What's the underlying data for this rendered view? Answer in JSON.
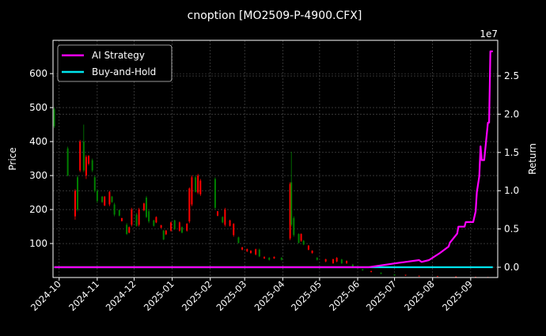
{
  "chart_data": {
    "type": "candlestick+line",
    "title": "cnoption [MO2509-P-4900.CFX]",
    "ylabel_left": "Price",
    "ylabel_right": "Return",
    "right_axis_multiplier": "1e7",
    "ylim_left": [
      0,
      698
    ],
    "ylim_right": [
      -1340000,
      29650000
    ],
    "xlim": [
      "2024-09-26",
      "2025-09-23"
    ],
    "grid": true,
    "legend_position": "top-left",
    "x_ticks": [
      "2024-10",
      "2024-11",
      "2024-12",
      "2025-01",
      "2025-02",
      "2025-03",
      "2025-04",
      "2025-05",
      "2025-06",
      "2025-07",
      "2025-08",
      "2025-09"
    ],
    "y_ticks_left": [
      100,
      200,
      300,
      400,
      500,
      600
    ],
    "y_ticks_right": [
      {
        "value": 0,
        "label": "0.0"
      },
      {
        "value": 5000000,
        "label": "0.5"
      },
      {
        "value": 10000000,
        "label": "1.0"
      },
      {
        "value": 15000000,
        "label": "1.5"
      },
      {
        "value": 20000000,
        "label": "2.0"
      },
      {
        "value": 25000000,
        "label": "2.5"
      }
    ],
    "colors": {
      "up": "#008000",
      "down": "#ff0000",
      "strategy": "#ff00ff",
      "buyhold": "#00e5ee",
      "grid": "#555555"
    },
    "candles_columns": [
      "date",
      "open",
      "high",
      "low",
      "close"
    ],
    "candles": [
      [
        "2024-09-27",
        445,
        500,
        440,
        495
      ],
      [
        "2024-10-08",
        300,
        385,
        298,
        380
      ],
      [
        "2024-10-14",
        255,
        260,
        170,
        180
      ],
      [
        "2024-10-16",
        200,
        300,
        195,
        295
      ],
      [
        "2024-10-18",
        400,
        405,
        310,
        315
      ],
      [
        "2024-10-21",
        315,
        450,
        310,
        400
      ],
      [
        "2024-10-23",
        355,
        360,
        290,
        300
      ],
      [
        "2024-10-25",
        358,
        360,
        330,
        335
      ],
      [
        "2024-10-28",
        315,
        350,
        310,
        345
      ],
      [
        "2024-10-30",
        255,
        300,
        250,
        295
      ],
      [
        "2024-11-01",
        225,
        260,
        220,
        255
      ],
      [
        "2024-11-05",
        222,
        240,
        220,
        238
      ],
      [
        "2024-11-07",
        238,
        240,
        210,
        212
      ],
      [
        "2024-11-11",
        252,
        255,
        210,
        215
      ],
      [
        "2024-11-13",
        222,
        240,
        220,
        238
      ],
      [
        "2024-11-15",
        185,
        220,
        180,
        215
      ],
      [
        "2024-11-19",
        182,
        200,
        180,
        198
      ],
      [
        "2024-11-21",
        175,
        175,
        165,
        166
      ],
      [
        "2024-11-25",
        128,
        160,
        125,
        155
      ],
      [
        "2024-11-27",
        148,
        150,
        130,
        132
      ],
      [
        "2024-11-29",
        200,
        205,
        150,
        155
      ],
      [
        "2024-12-03",
        152,
        190,
        150,
        185
      ],
      [
        "2024-12-05",
        200,
        205,
        150,
        155
      ],
      [
        "2024-12-09",
        218,
        220,
        195,
        198
      ],
      [
        "2024-12-11",
        178,
        240,
        175,
        235
      ],
      [
        "2024-12-13",
        165,
        200,
        160,
        195
      ],
      [
        "2024-12-17",
        152,
        170,
        150,
        168
      ],
      [
        "2024-12-19",
        178,
        180,
        160,
        162
      ],
      [
        "2024-12-23",
        154,
        155,
        145,
        146
      ],
      [
        "2024-12-25",
        112,
        140,
        110,
        138
      ],
      [
        "2024-12-27",
        138,
        140,
        125,
        127
      ],
      [
        "2024-12-31",
        162,
        165,
        135,
        138
      ],
      [
        "2025-01-03",
        142,
        170,
        140,
        168
      ],
      [
        "2025-01-07",
        162,
        165,
        135,
        138
      ],
      [
        "2025-01-09",
        132,
        150,
        130,
        148
      ],
      [
        "2025-01-13",
        158,
        160,
        135,
        138
      ],
      [
        "2025-01-15",
        262,
        265,
        160,
        165
      ],
      [
        "2025-01-17",
        295,
        300,
        210,
        215
      ],
      [
        "2025-01-20",
        252,
        300,
        250,
        295
      ],
      [
        "2025-01-22",
        300,
        305,
        245,
        250
      ],
      [
        "2025-01-24",
        285,
        290,
        240,
        245
      ],
      [
        "2025-02-05",
        205,
        295,
        200,
        290
      ],
      [
        "2025-02-07",
        195,
        195,
        180,
        182
      ],
      [
        "2025-02-11",
        162,
        180,
        160,
        178
      ],
      [
        "2025-02-13",
        200,
        205,
        150,
        155
      ],
      [
        "2025-02-17",
        168,
        170,
        150,
        152
      ],
      [
        "2025-02-20",
        158,
        160,
        120,
        125
      ],
      [
        "2025-02-24",
        102,
        120,
        100,
        118
      ],
      [
        "2025-02-27",
        89,
        90,
        80,
        82
      ],
      [
        "2025-03-03",
        84,
        85,
        75,
        77
      ],
      [
        "2025-03-06",
        79,
        80,
        70,
        72
      ],
      [
        "2025-03-10",
        83,
        85,
        65,
        68
      ],
      [
        "2025-03-13",
        62,
        85,
        60,
        82
      ],
      [
        "2025-03-17",
        61,
        62,
        55,
        56
      ],
      [
        "2025-03-21",
        52,
        60,
        50,
        58
      ],
      [
        "2025-03-25",
        61,
        62,
        55,
        56
      ],
      [
        "2025-03-31",
        52,
        60,
        50,
        58
      ],
      [
        "2025-04-07",
        275,
        280,
        110,
        115
      ],
      [
        "2025-04-08",
        155,
        370,
        150,
        280
      ],
      [
        "2025-04-10",
        125,
        180,
        120,
        175
      ],
      [
        "2025-04-14",
        102,
        130,
        100,
        128
      ],
      [
        "2025-04-16",
        128,
        130,
        105,
        108
      ],
      [
        "2025-04-18",
        97,
        110,
        95,
        108
      ],
      [
        "2025-04-22",
        94,
        95,
        80,
        82
      ],
      [
        "2025-04-25",
        79,
        80,
        70,
        72
      ],
      [
        "2025-04-29",
        52,
        60,
        50,
        58
      ],
      [
        "2025-05-06",
        54,
        55,
        45,
        47
      ],
      [
        "2025-05-12",
        54,
        55,
        40,
        42
      ],
      [
        "2025-05-15",
        58,
        60,
        45,
        47
      ],
      [
        "2025-05-19",
        42,
        55,
        40,
        53
      ],
      [
        "2025-05-23",
        49,
        50,
        40,
        42
      ],
      [
        "2025-05-28",
        32,
        40,
        30,
        38
      ],
      [
        "2025-06-05",
        21,
        25,
        20,
        24
      ],
      [
        "2025-06-12",
        19,
        20,
        15,
        16
      ],
      [
        "2025-06-20",
        11,
        15,
        10,
        14
      ],
      [
        "2025-07-01",
        6,
        10,
        5,
        9
      ],
      [
        "2025-07-10",
        8,
        8,
        5,
        6
      ],
      [
        "2025-07-21",
        5,
        6,
        4,
        4.5
      ],
      [
        "2025-08-05",
        4,
        4,
        2,
        2.5
      ],
      [
        "2025-08-20",
        3,
        3.5,
        2,
        2.2
      ],
      [
        "2025-09-05",
        2,
        2.2,
        1,
        1.2
      ],
      [
        "2025-09-15",
        1.5,
        1.8,
        1,
        1.1
      ]
    ],
    "series": [
      {
        "name": "AI Strategy",
        "x": [
          "2024-09-27",
          "2025-06-10",
          "2025-07-01",
          "2025-07-21",
          "2025-07-23",
          "2025-07-29",
          "2025-08-07",
          "2025-08-14",
          "2025-08-15",
          "2025-08-21",
          "2025-08-22",
          "2025-08-27",
          "2025-08-28",
          "2025-09-03",
          "2025-09-05",
          "2025-09-06",
          "2025-09-08",
          "2025-09-09",
          "2025-09-10",
          "2025-09-12",
          "2025-09-15",
          "2025-09-16",
          "2025-09-17",
          "2025-09-19"
        ],
        "values": [
          0,
          0,
          500000,
          930000,
          700000,
          930000,
          1860000,
          2700000,
          3200000,
          4400000,
          5300000,
          5300000,
          5900000,
          5900000,
          7300000,
          9800000,
          11900000,
          15800000,
          14000000,
          14000000,
          18900000,
          18900000,
          28200000,
          28200000
        ]
      },
      {
        "name": "Buy-and-Hold",
        "x": [
          "2024-09-27",
          "2025-09-19"
        ],
        "values": [
          0,
          0
        ]
      }
    ]
  }
}
